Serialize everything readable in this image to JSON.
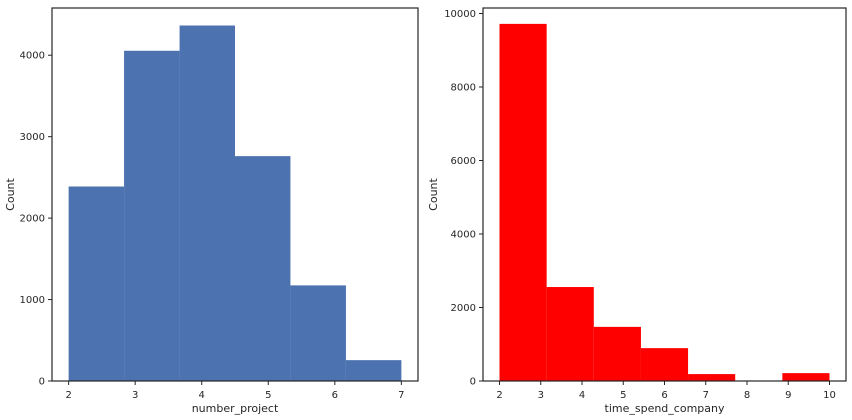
{
  "chart_data": [
    {
      "type": "bar",
      "xlabel": "number_project",
      "ylabel": "Count",
      "xlim": [
        1.75,
        7.25
      ],
      "ylim": [
        0,
        4580
      ],
      "xticks": [
        2,
        3,
        4,
        5,
        6,
        7
      ],
      "yticks": [
        0,
        1000,
        2000,
        3000,
        4000
      ],
      "bins": [
        {
          "x0": 2.0,
          "x1": 2.833,
          "value": 2388
        },
        {
          "x0": 2.833,
          "x1": 3.667,
          "value": 4055
        },
        {
          "x0": 3.667,
          "x1": 4.5,
          "value": 4365
        },
        {
          "x0": 4.5,
          "x1": 5.333,
          "value": 2761
        },
        {
          "x0": 5.333,
          "x1": 6.167,
          "value": 1174
        },
        {
          "x0": 6.167,
          "x1": 7.0,
          "value": 256
        }
      ],
      "color": "#4c72b0",
      "grid": false
    },
    {
      "type": "bar",
      "xlabel": "time_spend_company",
      "ylabel": "Count",
      "xlim": [
        1.6,
        10.4
      ],
      "ylim": [
        0,
        10150
      ],
      "xticks": [
        2,
        3,
        4,
        5,
        6,
        7,
        8,
        9,
        10
      ],
      "yticks": [
        0,
        2000,
        4000,
        6000,
        8000,
        10000
      ],
      "bins": [
        {
          "x0": 2.0,
          "x1": 3.143,
          "value": 9718
        },
        {
          "x0": 3.143,
          "x1": 4.286,
          "value": 2557
        },
        {
          "x0": 4.286,
          "x1": 5.429,
          "value": 1473
        },
        {
          "x0": 5.429,
          "x1": 6.571,
          "value": 894
        },
        {
          "x0": 6.571,
          "x1": 7.714,
          "value": 188
        },
        {
          "x0": 7.714,
          "x1": 8.857,
          "value": 0
        },
        {
          "x0": 8.857,
          "x1": 10.0,
          "value": 214
        }
      ],
      "color": "#ff0000",
      "grid": false
    }
  ]
}
